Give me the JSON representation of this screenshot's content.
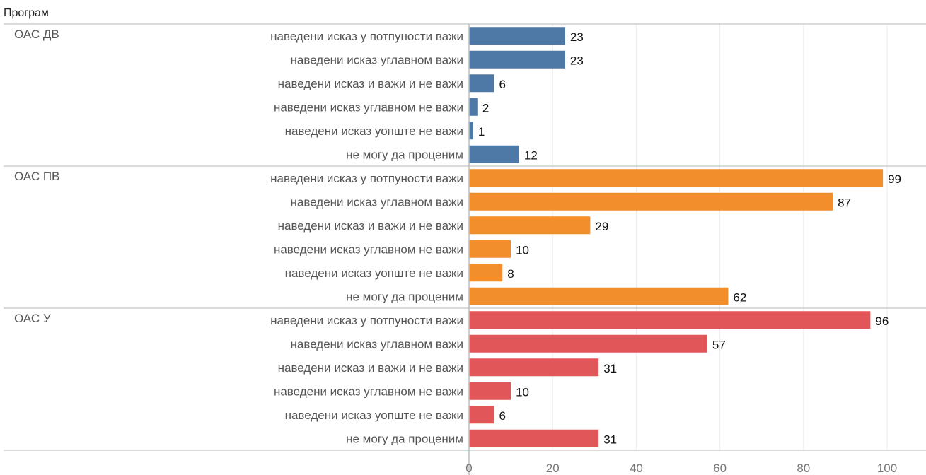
{
  "header": {
    "row_header": "Програм"
  },
  "chart_data": {
    "type": "bar",
    "orientation": "horizontal",
    "row_header": "Програм",
    "categories": [
      "наведени исказ у потпуности важи",
      "наведени исказ углавном важи",
      "наведени исказ и важи и не важи",
      "наведени исказ углавном не важи",
      "наведени исказ уопште не важи",
      "не могу да проценим"
    ],
    "groups": [
      {
        "name": "ОАС ДВ",
        "color": "#4e79a7",
        "values": [
          23,
          23,
          6,
          2,
          1,
          12
        ]
      },
      {
        "name": "ОАС ПВ",
        "color": "#f28e2b",
        "values": [
          99,
          87,
          29,
          10,
          8,
          62
        ]
      },
      {
        "name": "ОАС У",
        "color": "#e15759",
        "values": [
          96,
          57,
          31,
          10,
          6,
          31
        ]
      }
    ],
    "xlim": [
      0,
      105
    ],
    "xticks": [
      0,
      20,
      40,
      60,
      80,
      100
    ],
    "grid": true,
    "data_labels": true,
    "legend": "none"
  }
}
